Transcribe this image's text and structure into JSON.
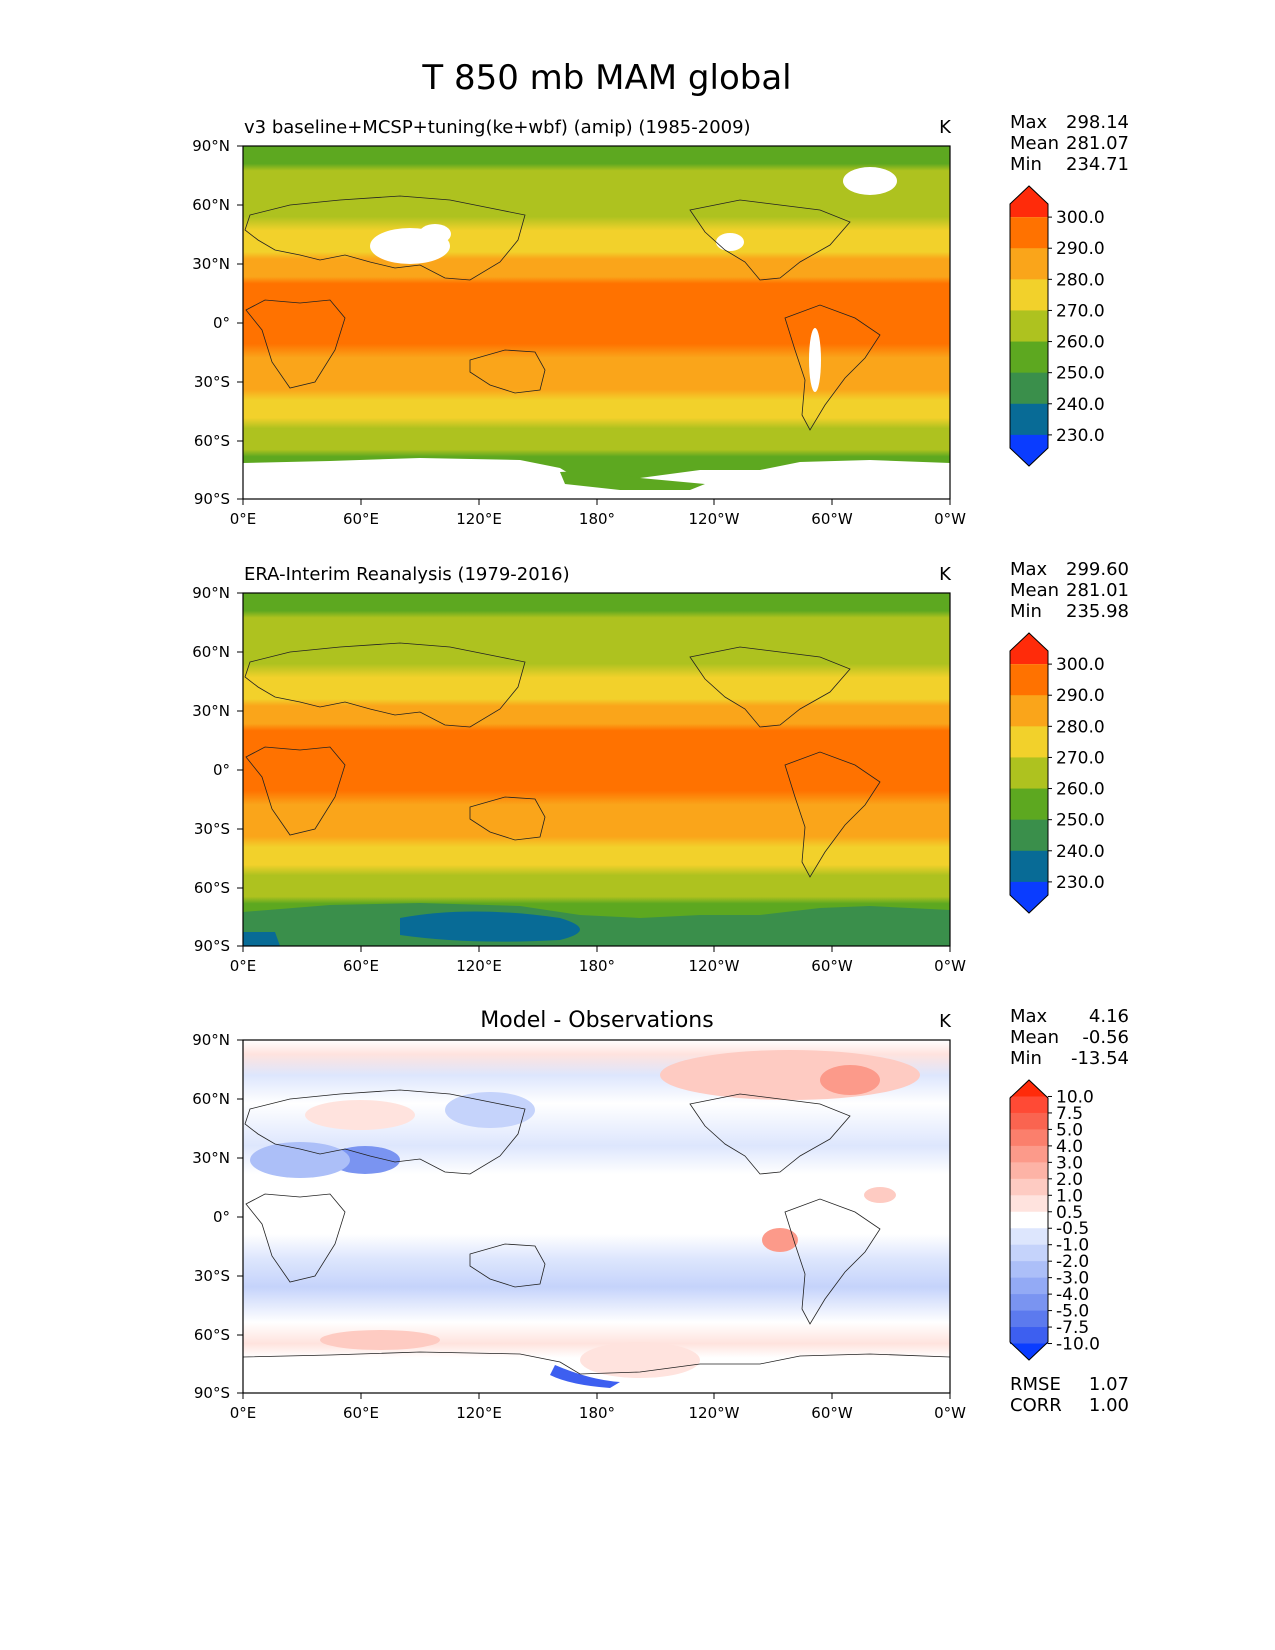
{
  "title": "T 850 mb MAM global",
  "chart_data": [
    {
      "type": "heatmap",
      "panel": "test",
      "subtitle": "v3 baseline+MCSP+tuning(ke+wbf) (amip) (1985-2009)",
      "units": "K",
      "stats": {
        "max_label": "Max",
        "max": "298.14",
        "mean_label": "Mean",
        "mean": "281.07",
        "min_label": "Min",
        "min": "234.71"
      },
      "colorbar": {
        "levels": [
          "300.0",
          "290.0",
          "280.0",
          "270.0",
          "260.0",
          "250.0",
          "240.0",
          "230.0"
        ],
        "colors": [
          "#ff2b0a",
          "#ff7200",
          "#faa51a",
          "#f2d12b",
          "#aec21f",
          "#5da820",
          "#3a8f4b",
          "#086b96",
          "#0a3cff"
        ]
      },
      "zonal_mean_K": [
        {
          "lat": 80,
          "value": 255
        },
        {
          "lat": 60,
          "value": 262
        },
        {
          "lat": 45,
          "value": 270
        },
        {
          "lat": 30,
          "value": 280
        },
        {
          "lat": 15,
          "value": 288
        },
        {
          "lat": 0,
          "value": 290
        },
        {
          "lat": -15,
          "value": 288
        },
        {
          "lat": -30,
          "value": 280
        },
        {
          "lat": -45,
          "value": 272
        },
        {
          "lat": -60,
          "value": 262
        },
        {
          "lat": -75,
          "value": 252
        }
      ]
    },
    {
      "type": "heatmap",
      "panel": "reference",
      "subtitle": "ERA-Interim Reanalysis (1979-2016)",
      "units": "K",
      "stats": {
        "max_label": "Max",
        "max": "299.60",
        "mean_label": "Mean",
        "mean": "281.01",
        "min_label": "Min",
        "min": "235.98"
      },
      "colorbar": {
        "levels": [
          "300.0",
          "290.0",
          "280.0",
          "270.0",
          "260.0",
          "250.0",
          "240.0",
          "230.0"
        ],
        "colors": [
          "#ff2b0a",
          "#ff7200",
          "#faa51a",
          "#f2d12b",
          "#aec21f",
          "#5da820",
          "#3a8f4b",
          "#086b96",
          "#0a3cff"
        ]
      },
      "zonal_mean_K": [
        {
          "lat": 80,
          "value": 255
        },
        {
          "lat": 60,
          "value": 262
        },
        {
          "lat": 45,
          "value": 270
        },
        {
          "lat": 30,
          "value": 280
        },
        {
          "lat": 15,
          "value": 288
        },
        {
          "lat": 0,
          "value": 290
        },
        {
          "lat": -15,
          "value": 288
        },
        {
          "lat": -30,
          "value": 280
        },
        {
          "lat": -45,
          "value": 272
        },
        {
          "lat": -60,
          "value": 262
        },
        {
          "lat": -75,
          "value": 245
        }
      ]
    },
    {
      "type": "heatmap",
      "panel": "difference",
      "subtitle": "Model - Observations",
      "units": "K",
      "stats": {
        "max_label": "Max",
        "max": "4.16",
        "mean_label": "Mean",
        "mean": "-0.56",
        "min_label": "Min",
        "min": "-13.54"
      },
      "metrics": {
        "rmse_label": "RMSE",
        "rmse": "1.07",
        "corr_label": "CORR",
        "corr": "1.00"
      },
      "colorbar": {
        "levels": [
          "10.0",
          "7.5",
          "5.0",
          "4.0",
          "3.0",
          "2.0",
          "1.0",
          "0.5",
          "-0.5",
          "-1.0",
          "-2.0",
          "-3.0",
          "-4.0",
          "-5.0",
          "-7.5",
          "-10.0"
        ],
        "colors": [
          "#ff2b0a",
          "#ff4a35",
          "#fa6450",
          "#fb7f6c",
          "#fc9a8a",
          "#fdb3a6",
          "#fecbc2",
          "#ffe3de",
          "#ffffff",
          "#dde6fd",
          "#c5d3fb",
          "#acbff8",
          "#93aaf5",
          "#7a94f1",
          "#5c7aee",
          "#3d5ff0",
          "#0a3cff"
        ]
      },
      "zonal_mean_K": [
        {
          "lat": 80,
          "value": 0.5
        },
        {
          "lat": 60,
          "value": -0.8
        },
        {
          "lat": 45,
          "value": -0.6
        },
        {
          "lat": 30,
          "value": -1.2
        },
        {
          "lat": 15,
          "value": -0.3
        },
        {
          "lat": 0,
          "value": 0.0
        },
        {
          "lat": -15,
          "value": -0.6
        },
        {
          "lat": -30,
          "value": -1.6
        },
        {
          "lat": -45,
          "value": -1.2
        },
        {
          "lat": -60,
          "value": 0.3
        },
        {
          "lat": -75,
          "value": -0.4
        }
      ]
    }
  ],
  "axes": {
    "xticks": [
      "0°E",
      "60°E",
      "120°E",
      "180°",
      "120°W",
      "60°W",
      "0°W"
    ],
    "yticks": [
      "90°N",
      "60°N",
      "30°N",
      "0°",
      "30°S",
      "60°S",
      "90°S"
    ]
  }
}
